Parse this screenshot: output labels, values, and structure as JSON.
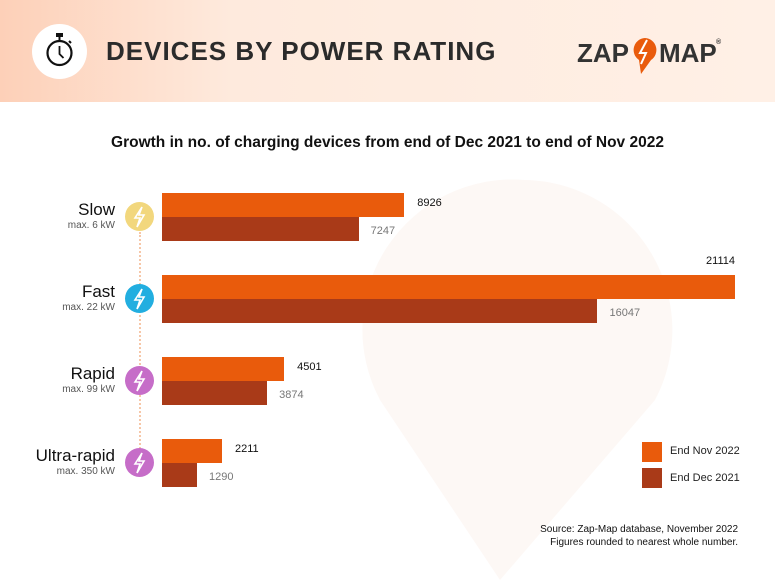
{
  "header": {
    "title": "DEVICES BY POWER RATING",
    "logo": "ZAP-MAP",
    "icon": "stopwatch-icon"
  },
  "colors": {
    "end_nov_2022": "#e95b0c",
    "end_dec_2021": "#a93a18",
    "slow": "#f2d77d",
    "fast": "#22aee0",
    "rapid": "#c66dc8",
    "ultra_rapid": "#c66dc8"
  },
  "chart_data": {
    "type": "bar",
    "orientation": "horizontal",
    "title": "Growth in no. of charging devices from end of Dec 2021 to end of Nov 2022",
    "categories": [
      "Slow",
      "Fast",
      "Rapid",
      "Ultra-rapid"
    ],
    "category_sublabels": [
      "max. 6 kW",
      "max. 22 kW",
      "max. 99 kW",
      "max. 350 kW"
    ],
    "series": [
      {
        "name": "End Nov 2022",
        "values": [
          8926,
          21114,
          4501,
          2211
        ]
      },
      {
        "name": "End Dec 2021",
        "values": [
          7247,
          16047,
          3874,
          1290
        ]
      }
    ],
    "xlim": [
      0,
      21114
    ],
    "grid": false,
    "legend_position": "bottom-right"
  },
  "footer": {
    "source": "Source: Zap-Map database, November 2022",
    "note": "Figures rounded to nearest whole number."
  }
}
